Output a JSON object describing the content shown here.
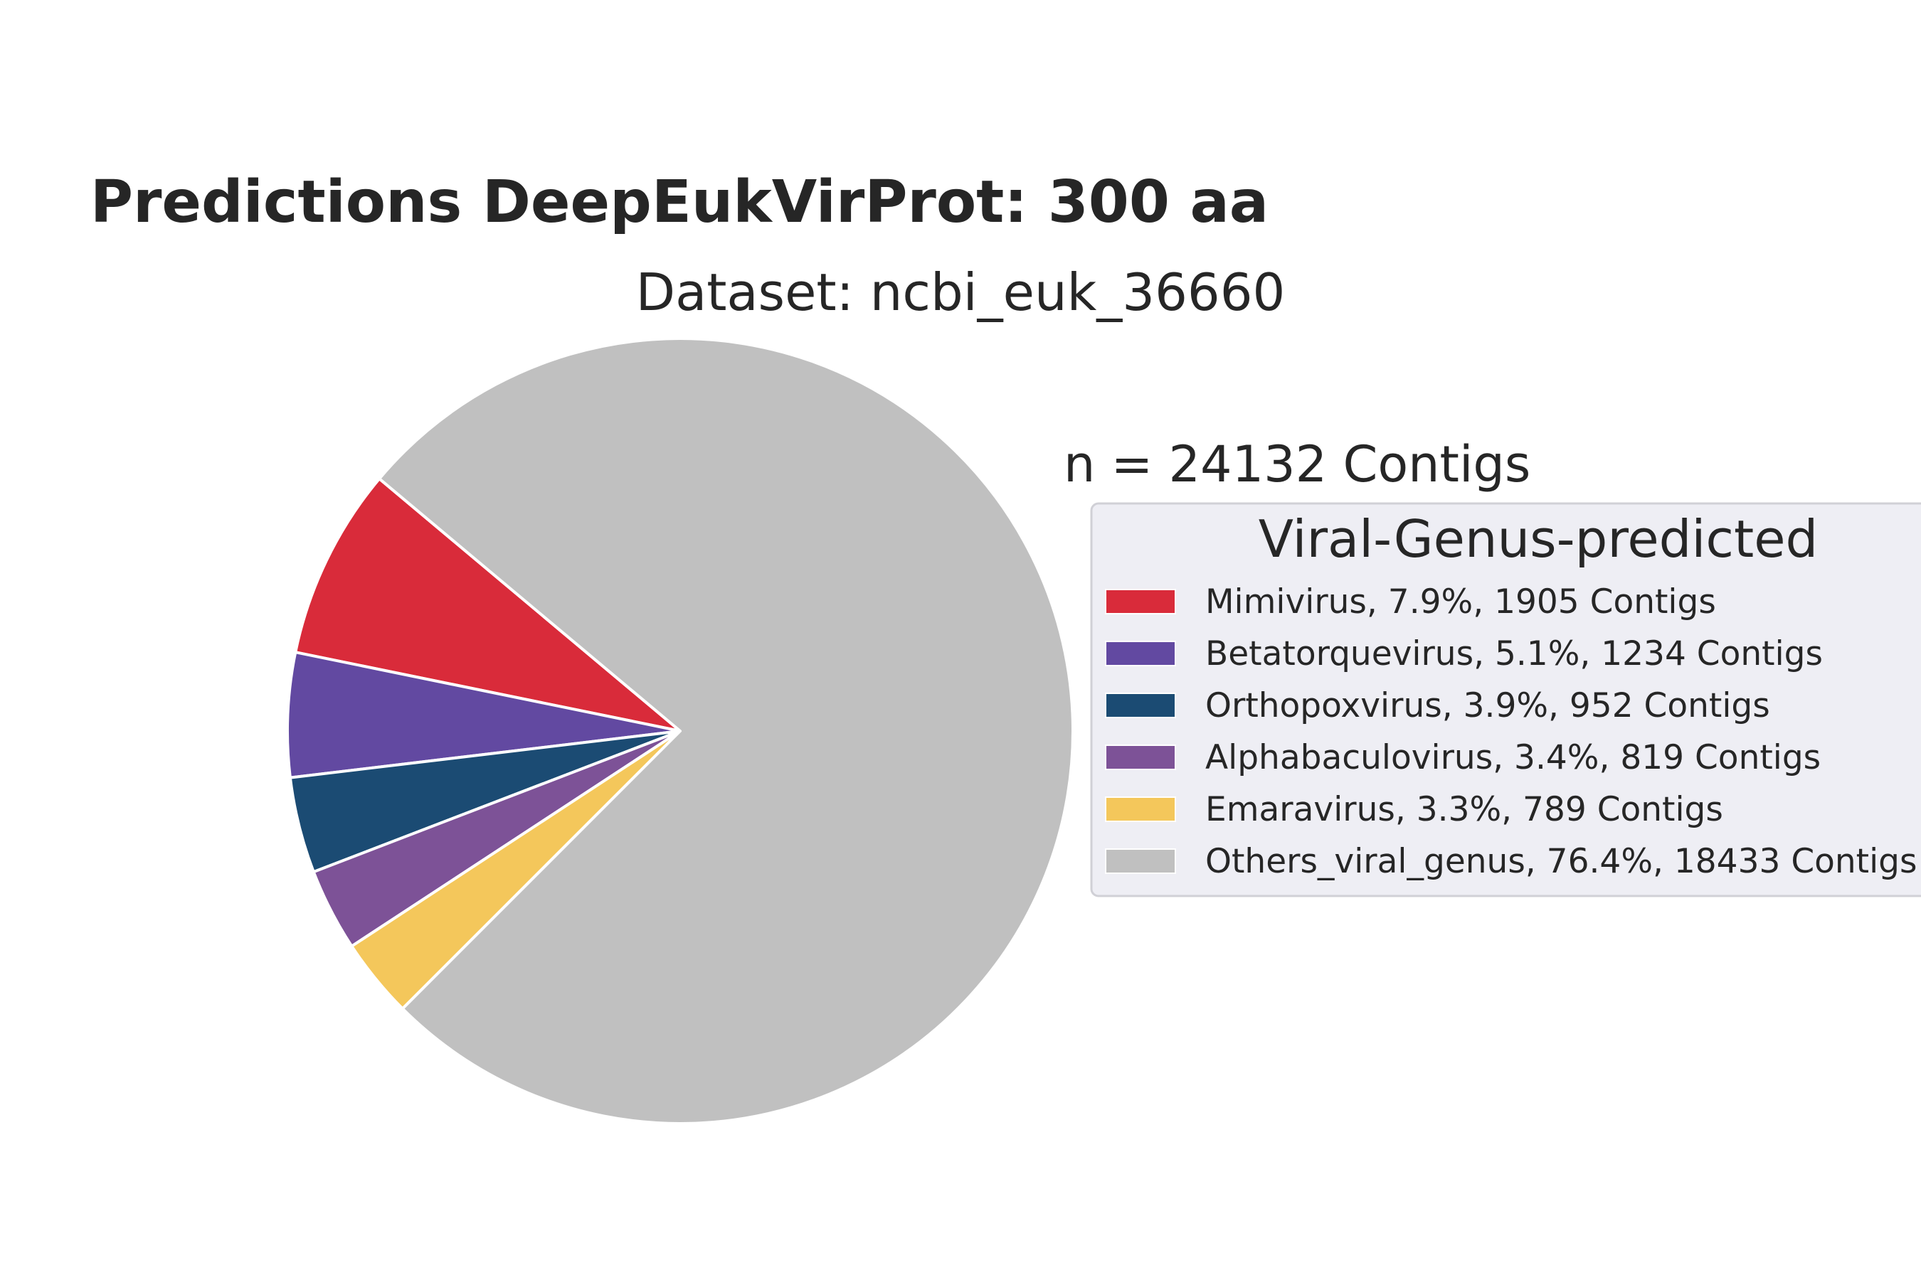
{
  "chart_data": {
    "type": "pie",
    "title": "Predictions DeepEukVirProt: 300 aa",
    "subtitle": "Dataset: ncbi_euk_36660",
    "annotation": "n = 24132 Contigs",
    "legend": {
      "title": "Viral-Genus-predicted",
      "placement": "right"
    },
    "slices": [
      {
        "label": "Mimivirus, 7.9%, 1905 Contigs",
        "name": "Mimivirus",
        "percent": 7.9,
        "value": 1905,
        "color": "#d92b3a"
      },
      {
        "label": "Betatorquevirus, 5.1%, 1234 Contigs",
        "name": "Betatorquevirus",
        "percent": 5.1,
        "value": 1234,
        "color": "#6249a1"
      },
      {
        "label": "Orthopoxvirus, 3.9%, 952 Contigs",
        "name": "Orthopoxvirus",
        "percent": 3.9,
        "value": 952,
        "color": "#1b4b73"
      },
      {
        "label": "Alphabaculovirus, 3.4%, 819 Contigs",
        "name": "Alphabaculovirus",
        "percent": 3.4,
        "value": 819,
        "color": "#7d5297"
      },
      {
        "label": "Emaravirus, 3.3%, 789 Contigs",
        "name": "Emaravirus",
        "percent": 3.3,
        "value": 789,
        "color": "#f4c75b"
      },
      {
        "label": "Others_viral_genus, 76.4%, 18433 Contigs",
        "name": "Others_viral_genus",
        "percent": 76.4,
        "value": 18433,
        "color": "#c0c0c0"
      }
    ]
  }
}
